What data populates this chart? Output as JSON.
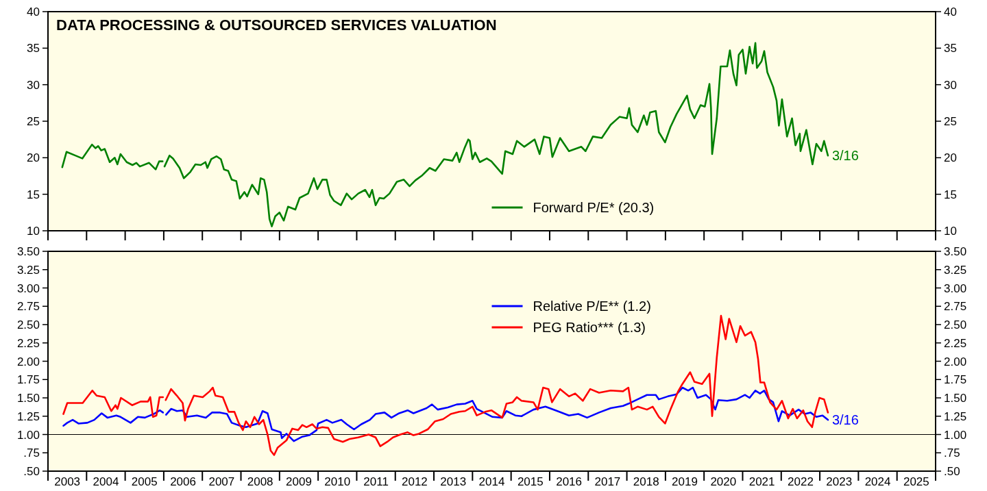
{
  "chart_data": [
    {
      "type": "line",
      "title": "DATA PROCESSING & OUTSOURCED SERVICES VALUATION",
      "xlim": [
        2003,
        2026
      ],
      "ylim": [
        10,
        40
      ],
      "y2lim": [
        10,
        40
      ],
      "xticks": [
        {
          "value": 2003,
          "label": null
        },
        {
          "value": 2004,
          "label": null
        },
        {
          "value": 2005,
          "label": null
        },
        {
          "value": 2006,
          "label": null
        },
        {
          "value": 2007,
          "label": null
        },
        {
          "value": 2008,
          "label": null
        },
        {
          "value": 2009,
          "label": null
        },
        {
          "value": 2010,
          "label": null
        },
        {
          "value": 2011,
          "label": null
        },
        {
          "value": 2012,
          "label": null
        },
        {
          "value": 2013,
          "label": null
        },
        {
          "value": 2014,
          "label": null
        },
        {
          "value": 2015,
          "label": null
        },
        {
          "value": 2016,
          "label": null
        },
        {
          "value": 2017,
          "label": null
        },
        {
          "value": 2018,
          "label": null
        },
        {
          "value": 2019,
          "label": null
        },
        {
          "value": 2020,
          "label": null
        },
        {
          "value": 2021,
          "label": null
        },
        {
          "value": 2022,
          "label": null
        },
        {
          "value": 2023,
          "label": null
        },
        {
          "value": 2024,
          "label": null
        },
        {
          "value": 2025,
          "label": null
        },
        {
          "value": 2026,
          "label": null
        }
      ],
      "yticks": [
        10,
        15,
        20,
        25,
        30,
        35,
        40
      ],
      "y2ticks": [
        10,
        15,
        20,
        25,
        30,
        35,
        40
      ],
      "tick_labels": "y",
      "grid": false,
      "legend": "bottom",
      "annotations": [
        {
          "text": "3/16",
          "x": 2023.21,
          "y": 20.3
        }
      ],
      "series": [
        {
          "name": "Forward P/E* (20.3)",
          "color": "#008000",
          "x": [
            2003.37,
            2003.48,
            2003.71,
            2003.89,
            2004.14,
            2004.23,
            2004.3,
            2004.38,
            2004.47,
            2004.6,
            2004.73,
            2004.8,
            2004.88,
            2005.04,
            2005.19,
            2005.29,
            2005.38,
            2005.62,
            2005.79,
            2005.88,
            2005.97,
            2006.0,
            2006.02,
            2006.15,
            2006.24,
            2006.41,
            2006.52,
            2006.68,
            2006.82,
            2006.96,
            2007.08,
            2007.13,
            2007.23,
            2007.37,
            2007.48,
            2007.56,
            2007.67,
            2007.76,
            2007.88,
            2007.97,
            2008.09,
            2008.16,
            2008.29,
            2008.45,
            2008.51,
            2008.6,
            2008.67,
            2008.74,
            2008.8,
            2008.89,
            2009.0,
            2009.11,
            2009.22,
            2009.41,
            2009.52,
            2009.74,
            2009.89,
            2009.98,
            2010.11,
            2010.22,
            2010.31,
            2010.41,
            2010.59,
            2010.74,
            2010.87,
            2011.04,
            2011.22,
            2011.33,
            2011.4,
            2011.49,
            2011.59,
            2011.7,
            2011.85,
            2012.04,
            2012.22,
            2012.37,
            2012.52,
            2012.7,
            2012.89,
            2013.04,
            2013.26,
            2013.48,
            2013.59,
            2013.66,
            2013.8,
            2013.89,
            2013.93,
            2014.0,
            2014.07,
            2014.19,
            2014.37,
            2014.49,
            2014.77,
            2014.85,
            2015.04,
            2015.15,
            2015.34,
            2015.61,
            2015.74,
            2015.85,
            2016.0,
            2016.07,
            2016.27,
            2016.5,
            2016.82,
            2016.93,
            2017.12,
            2017.35,
            2017.58,
            2017.81,
            2018.0,
            2018.06,
            2018.13,
            2018.28,
            2018.44,
            2018.52,
            2018.6,
            2018.75,
            2018.83,
            2018.99,
            2019.13,
            2019.29,
            2019.56,
            2019.64,
            2019.75,
            2019.91,
            2020.02,
            2020.14,
            2020.18,
            2020.21,
            2020.33,
            2020.43,
            2020.6,
            2020.67,
            2020.76,
            2020.84,
            2020.9,
            2021.0,
            2021.08,
            2021.18,
            2021.26,
            2021.33,
            2021.37,
            2021.49,
            2021.56,
            2021.64,
            2021.79,
            2021.88,
            2021.94,
            2022.02,
            2022.15,
            2022.28,
            2022.37,
            2022.48,
            2022.5,
            2022.65,
            2022.81,
            2022.91,
            2023.04,
            2023.11,
            2023.21
          ],
          "values": [
            18.7,
            20.8,
            20.3,
            19.9,
            21.8,
            21.3,
            21.6,
            21.0,
            21.2,
            19.4,
            20.0,
            19.1,
            20.5,
            19.4,
            19.0,
            19.3,
            18.8,
            19.3,
            18.4,
            19.5,
            19.5,
            null,
            18.8,
            20.3,
            19.9,
            18.6,
            17.2,
            18.0,
            19.1,
            19.0,
            19.4,
            18.6,
            19.8,
            20.2,
            19.8,
            18.4,
            18.2,
            17.0,
            16.8,
            14.4,
            15.3,
            14.7,
            16.3,
            15.0,
            17.2,
            17.0,
            15.3,
            11.6,
            10.6,
            12.0,
            12.5,
            11.4,
            13.3,
            12.9,
            14.5,
            15.1,
            17.2,
            15.7,
            17.0,
            17.0,
            14.9,
            14.1,
            13.5,
            15.1,
            14.3,
            15.1,
            15.6,
            14.6,
            15.6,
            13.5,
            14.5,
            14.4,
            15.1,
            16.7,
            17.0,
            16.1,
            16.9,
            17.6,
            18.6,
            18.2,
            19.8,
            19.6,
            20.7,
            19.4,
            21.4,
            22.5,
            22.3,
            19.8,
            20.7,
            19.4,
            19.9,
            19.5,
            17.8,
            20.9,
            20.5,
            22.3,
            21.5,
            22.5,
            20.5,
            22.9,
            22.7,
            20.1,
            22.7,
            20.9,
            21.5,
            20.9,
            22.9,
            22.7,
            24.5,
            25.6,
            25.4,
            26.8,
            24.5,
            23.5,
            25.8,
            24.5,
            26.2,
            26.4,
            23.5,
            22.1,
            24.2,
            26.0,
            28.5,
            26.6,
            25.4,
            27.2,
            27.0,
            30.1,
            26.8,
            20.5,
            25.4,
            32.5,
            32.5,
            34.7,
            31.5,
            29.9,
            34.1,
            34.8,
            31.5,
            35.2,
            32.9,
            35.7,
            32.3,
            33.2,
            34.6,
            31.7,
            29.7,
            27.8,
            24.4,
            28.0,
            22.9,
            25.4,
            21.7,
            23.3,
            20.9,
            23.8,
            19.1,
            21.9,
            20.9,
            22.3,
            20.3
          ]
        }
      ]
    },
    {
      "type": "line",
      "xlim": [
        2003,
        2026
      ],
      "ylim": [
        0.5,
        3.5
      ],
      "y2lim": [
        0.5,
        3.5
      ],
      "xticks": [
        {
          "value": 2003,
          "label": null
        },
        {
          "value": 2003.5,
          "label": "2003"
        },
        {
          "value": 2004,
          "label": null
        },
        {
          "value": 2004.5,
          "label": "2004"
        },
        {
          "value": 2005,
          "label": null
        },
        {
          "value": 2005.5,
          "label": "2005"
        },
        {
          "value": 2006,
          "label": null
        },
        {
          "value": 2006.5,
          "label": "2006"
        },
        {
          "value": 2007,
          "label": null
        },
        {
          "value": 2007.5,
          "label": "2007"
        },
        {
          "value": 2008,
          "label": null
        },
        {
          "value": 2008.5,
          "label": "2008"
        },
        {
          "value": 2009,
          "label": null
        },
        {
          "value": 2009.5,
          "label": "2009"
        },
        {
          "value": 2010,
          "label": null
        },
        {
          "value": 2010.5,
          "label": "2010"
        },
        {
          "value": 2011,
          "label": null
        },
        {
          "value": 2011.5,
          "label": "2011"
        },
        {
          "value": 2012,
          "label": null
        },
        {
          "value": 2012.5,
          "label": "2012"
        },
        {
          "value": 2013,
          "label": null
        },
        {
          "value": 2013.5,
          "label": "2013"
        },
        {
          "value": 2014,
          "label": null
        },
        {
          "value": 2014.5,
          "label": "2014"
        },
        {
          "value": 2015,
          "label": null
        },
        {
          "value": 2015.5,
          "label": "2015"
        },
        {
          "value": 2016,
          "label": null
        },
        {
          "value": 2016.5,
          "label": "2016"
        },
        {
          "value": 2017,
          "label": null
        },
        {
          "value": 2017.5,
          "label": "2017"
        },
        {
          "value": 2018,
          "label": null
        },
        {
          "value": 2018.5,
          "label": "2018"
        },
        {
          "value": 2019,
          "label": null
        },
        {
          "value": 2019.5,
          "label": "2019"
        },
        {
          "value": 2020,
          "label": null
        },
        {
          "value": 2020.5,
          "label": "2020"
        },
        {
          "value": 2021,
          "label": null
        },
        {
          "value": 2021.5,
          "label": "2021"
        },
        {
          "value": 2022,
          "label": null
        },
        {
          "value": 2022.5,
          "label": "2022"
        },
        {
          "value": 2023,
          "label": null
        },
        {
          "value": 2023.5,
          "label": "2023"
        },
        {
          "value": 2024,
          "label": null
        },
        {
          "value": 2024.5,
          "label": "2024"
        },
        {
          "value": 2025,
          "label": null
        },
        {
          "value": 2025.5,
          "label": "2025"
        },
        {
          "value": 2026,
          "label": null
        }
      ],
      "yticks": [
        {
          "value": 0.5,
          "label": ".50"
        },
        {
          "value": 0.75,
          "label": ".75"
        },
        {
          "value": 1,
          "label": "1.00"
        },
        {
          "value": 1.25,
          "label": "1.25"
        },
        {
          "value": 1.5,
          "label": "1.50"
        },
        {
          "value": 1.75,
          "label": "1.75"
        },
        {
          "value": 2,
          "label": "2.00"
        },
        {
          "value": 2.25,
          "label": "2.25"
        },
        {
          "value": 2.5,
          "label": "2.50"
        },
        {
          "value": 2.75,
          "label": "2.75"
        },
        {
          "value": 3,
          "label": "3.00"
        },
        {
          "value": 3.25,
          "label": "3.25"
        },
        {
          "value": 3.5,
          "label": "3.50"
        }
      ],
      "y2ticks": [
        {
          "value": 0.5,
          "label": ".50"
        },
        {
          "value": 0.75,
          "label": ".75"
        },
        {
          "value": 1,
          "label": "1.00"
        },
        {
          "value": 1.25,
          "label": "1.25"
        },
        {
          "value": 1.5,
          "label": "1.50"
        },
        {
          "value": 1.75,
          "label": "1.75"
        },
        {
          "value": 2,
          "label": "2.00"
        },
        {
          "value": 2.25,
          "label": "2.25"
        },
        {
          "value": 2.5,
          "label": "2.50"
        },
        {
          "value": 2.75,
          "label": "2.75"
        },
        {
          "value": 3,
          "label": "3.00"
        },
        {
          "value": 3.25,
          "label": "3.25"
        },
        {
          "value": 3.5,
          "label": "3.50"
        }
      ],
      "grid": false,
      "legend": "top",
      "ref_lines": [
        {
          "axis": "y",
          "value": 1,
          "color": "#000000"
        }
      ],
      "annotations": [
        {
          "text": "3/16",
          "x": 2023.21,
          "y": 1.2
        }
      ],
      "series": [
        {
          "name": "Relative P/E** (1.2)",
          "color": "#0000ff",
          "x": [
            2003.4,
            2003.5,
            2003.64,
            2003.79,
            2004.02,
            2004.2,
            2004.39,
            2004.54,
            2004.77,
            2004.88,
            2005.14,
            2005.33,
            2005.51,
            2005.74,
            2005.9,
            2005.98,
            2006.0,
            2006.06,
            2006.19,
            2006.34,
            2006.49,
            2006.6,
            2006.86,
            2007.09,
            2007.25,
            2007.46,
            2007.64,
            2007.76,
            2007.98,
            2008.13,
            2008.43,
            2008.56,
            2008.69,
            2008.8,
            2009.03,
            2009.06,
            2009.18,
            2009.37,
            2009.59,
            2009.77,
            2009.96,
            2010.0,
            2010.22,
            2010.37,
            2010.6,
            2010.74,
            2010.93,
            2011.12,
            2011.34,
            2011.49,
            2011.72,
            2011.9,
            2012.1,
            2012.32,
            2012.47,
            2012.81,
            2012.95,
            2013.1,
            2013.36,
            2013.59,
            2013.81,
            2014.0,
            2014.11,
            2014.33,
            2014.52,
            2014.77,
            2014.88,
            2015.11,
            2015.27,
            2015.58,
            2015.89,
            2016.2,
            2016.5,
            2016.74,
            2016.97,
            2017.28,
            2017.58,
            2017.9,
            2018.04,
            2018.28,
            2018.52,
            2018.75,
            2018.83,
            2019.06,
            2019.29,
            2019.44,
            2019.59,
            2019.71,
            2019.83,
            2020.05,
            2020.18,
            2020.29,
            2020.37,
            2020.6,
            2020.84,
            2021.06,
            2021.18,
            2021.33,
            2021.45,
            2021.56,
            2021.68,
            2021.79,
            2021.93,
            2022.02,
            2022.22,
            2022.45,
            2022.61,
            2022.76,
            2022.91,
            2023.07,
            2023.21
          ],
          "values": [
            1.12,
            1.16,
            1.2,
            1.15,
            1.16,
            1.2,
            1.29,
            1.23,
            1.26,
            1.24,
            1.16,
            1.24,
            1.23,
            1.28,
            1.33,
            1.3,
            null,
            1.27,
            1.35,
            1.32,
            1.33,
            1.24,
            1.26,
            1.23,
            1.3,
            1.3,
            1.28,
            1.16,
            1.12,
            1.1,
            1.15,
            1.32,
            1.29,
            1.07,
            1.03,
            0.95,
            1.01,
            0.91,
            0.97,
            0.99,
            1.06,
            1.15,
            1.2,
            1.16,
            1.2,
            1.14,
            1.07,
            1.14,
            1.2,
            1.28,
            1.3,
            1.23,
            1.29,
            1.33,
            1.29,
            1.36,
            1.41,
            1.34,
            1.37,
            1.41,
            1.42,
            1.46,
            1.35,
            1.29,
            1.24,
            1.23,
            1.32,
            1.26,
            1.25,
            1.34,
            1.38,
            1.32,
            1.26,
            1.28,
            1.23,
            1.3,
            1.36,
            1.39,
            1.42,
            1.48,
            1.54,
            1.54,
            1.48,
            1.52,
            1.55,
            1.64,
            1.6,
            1.64,
            1.5,
            1.54,
            1.48,
            1.34,
            1.47,
            1.46,
            1.48,
            1.54,
            1.5,
            1.6,
            1.56,
            1.6,
            1.48,
            1.44,
            1.18,
            1.32,
            1.26,
            1.34,
            1.28,
            1.3,
            1.24,
            1.26,
            1.2
          ]
        },
        {
          "name": "PEG Ratio*** (1.3)",
          "color": "#ff0000",
          "x": [
            2003.4,
            2003.5,
            2003.72,
            2003.9,
            2004.15,
            2004.26,
            2004.47,
            2004.64,
            2004.75,
            2004.8,
            2004.89,
            2005.18,
            2005.4,
            2005.59,
            2005.65,
            2005.72,
            2005.81,
            2005.89,
            2005.98,
            2006.0,
            2006.05,
            2006.19,
            2006.34,
            2006.49,
            2006.55,
            2006.63,
            2006.78,
            2007.01,
            2007.19,
            2007.27,
            2007.34,
            2007.53,
            2007.68,
            2007.83,
            2007.94,
            2008.05,
            2008.13,
            2008.24,
            2008.35,
            2008.47,
            2008.58,
            2008.69,
            2008.77,
            2008.86,
            2008.95,
            2009.18,
            2009.33,
            2009.48,
            2009.59,
            2009.7,
            2009.85,
            2009.96,
            2010.11,
            2010.26,
            2010.41,
            2010.64,
            2010.82,
            2011.04,
            2011.31,
            2011.49,
            2011.61,
            2011.79,
            2011.94,
            2012.13,
            2012.32,
            2012.47,
            2012.61,
            2012.84,
            2013.03,
            2013.24,
            2013.44,
            2013.66,
            2013.81,
            2014.0,
            2014.11,
            2014.33,
            2014.49,
            2014.77,
            2014.88,
            2015.04,
            2015.15,
            2015.27,
            2015.58,
            2015.69,
            2015.83,
            2015.97,
            2016.06,
            2016.27,
            2016.5,
            2016.66,
            2016.86,
            2017.05,
            2017.28,
            2017.58,
            2017.9,
            2018.04,
            2018.13,
            2018.28,
            2018.52,
            2018.67,
            2018.83,
            2018.99,
            2019.13,
            2019.33,
            2019.44,
            2019.64,
            2019.75,
            2019.95,
            2020.14,
            2020.21,
            2020.33,
            2020.44,
            2020.56,
            2020.65,
            2020.84,
            2020.94,
            2021.06,
            2021.22,
            2021.33,
            2021.4,
            2021.46,
            2021.56,
            2021.71,
            2021.88,
            2022.02,
            2022.18,
            2022.3,
            2022.41,
            2022.57,
            2022.68,
            2022.8,
            2022.88,
            2022.99,
            2023.11,
            2023.21
          ],
          "values": [
            1.28,
            1.43,
            1.43,
            1.43,
            1.6,
            1.53,
            1.51,
            1.32,
            1.4,
            1.35,
            1.5,
            1.4,
            1.45,
            1.45,
            1.51,
            1.24,
            1.26,
            1.51,
            1.51,
            null,
            1.47,
            1.62,
            1.53,
            1.43,
            1.19,
            1.35,
            1.53,
            1.51,
            1.59,
            1.64,
            1.53,
            1.51,
            1.31,
            1.31,
            1.16,
            1.06,
            1.18,
            1.1,
            1.24,
            1.14,
            1.2,
            1.0,
            0.78,
            0.72,
            0.82,
            0.92,
            1.08,
            1.06,
            1.13,
            1.1,
            1.14,
            1.08,
            1.1,
            1.09,
            0.94,
            0.9,
            0.94,
            0.96,
            1.0,
            0.96,
            0.84,
            0.9,
            0.96,
            1.0,
            1.03,
            0.99,
            1.01,
            1.07,
            1.18,
            1.21,
            1.28,
            1.31,
            1.32,
            1.38,
            1.26,
            1.31,
            1.33,
            1.23,
            1.42,
            1.44,
            1.51,
            1.46,
            1.44,
            1.34,
            1.64,
            1.62,
            1.44,
            1.62,
            1.52,
            1.56,
            1.46,
            1.62,
            1.57,
            1.6,
            1.59,
            1.64,
            1.34,
            1.38,
            1.34,
            1.38,
            1.24,
            1.15,
            1.34,
            1.59,
            1.69,
            1.85,
            1.72,
            1.69,
            1.83,
            1.25,
            2.05,
            2.62,
            2.3,
            2.58,
            2.26,
            2.48,
            2.35,
            2.4,
            2.26,
            2.03,
            1.71,
            1.71,
            1.44,
            1.34,
            1.46,
            1.22,
            1.35,
            1.22,
            1.33,
            1.18,
            1.1,
            1.3,
            1.5,
            1.48,
            1.3
          ]
        }
      ]
    }
  ]
}
